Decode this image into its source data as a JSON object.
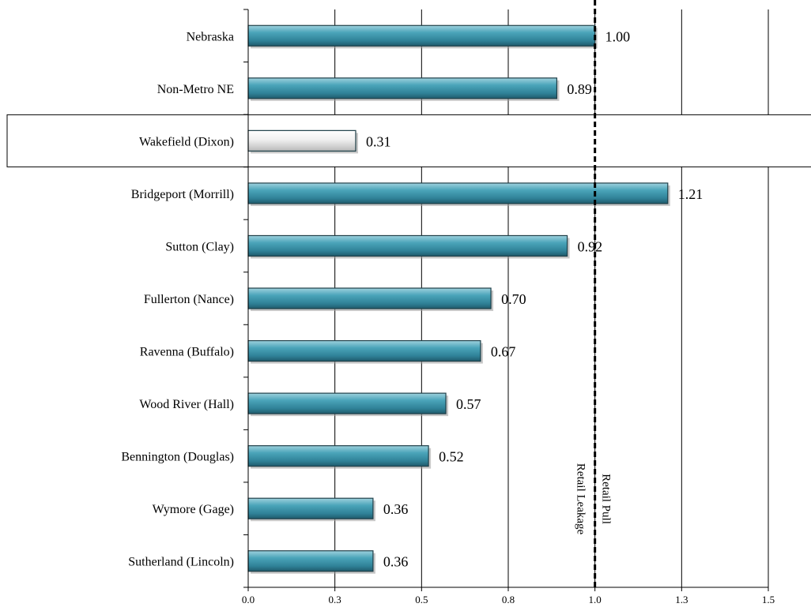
{
  "chart_data": {
    "type": "bar",
    "orientation": "horizontal",
    "title": "",
    "xlabel": "",
    "ylabel": "",
    "xlim": [
      0,
      1.5
    ],
    "x_tick_labels": [
      "0.0",
      "0.3",
      "0.5",
      "0.8",
      "1.0",
      "1.3",
      "1.5"
    ],
    "categories": [
      "Nebraska",
      "Non-Metro NE",
      "Wakefield (Dixon)",
      "Bridgeport (Morrill)",
      "Sutton (Clay)",
      "Fullerton (Nance)",
      "Ravenna (Buffalo)",
      "Wood River (Hall)",
      "Bennington (Douglas)",
      "Wymore (Gage)",
      "Sutherland (Lincoln)"
    ],
    "values": [
      1.0,
      0.89,
      0.31,
      1.21,
      0.92,
      0.7,
      0.67,
      0.57,
      0.52,
      0.36,
      0.36
    ],
    "data_labels": [
      "1.00",
      "0.89",
      "0.31",
      "1.21",
      "0.92",
      "0.70",
      "0.67",
      "0.57",
      "0.52",
      "0.36",
      "0.36"
    ],
    "highlighted_category": "Wakefield (Dixon)",
    "reference_line": {
      "value": 1.0,
      "style": "dashed",
      "label_left": "Retail Leakage",
      "label_right": "Retail Pull"
    },
    "grid": "vertical",
    "colors": {
      "bar": "#3a93a8",
      "bar_highlight": "#e6e6e6",
      "bar_border": "#1f3f48",
      "grid": "#000000",
      "reference": "#000000"
    }
  }
}
